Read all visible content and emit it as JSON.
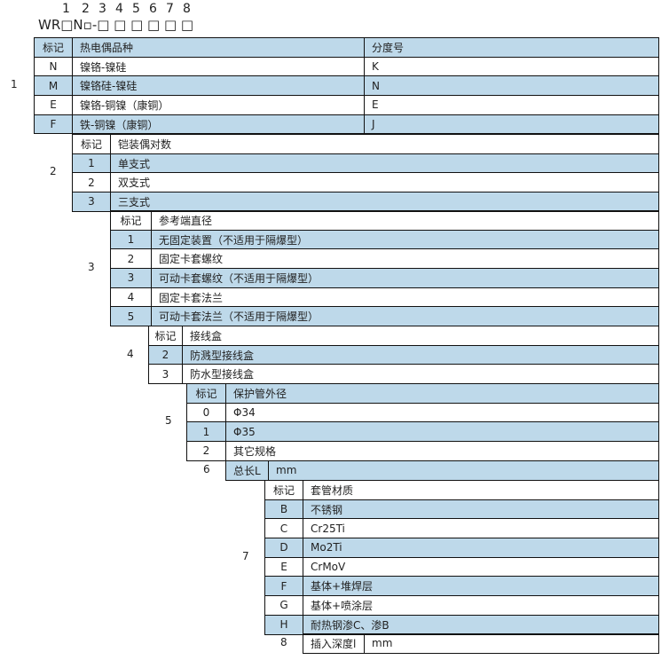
{
  "header": {
    "digits": [
      "1",
      "2",
      "3",
      "4",
      "5",
      "6",
      "7",
      "8"
    ],
    "pattern": "WR□N▫-□ □ □ □ □ □"
  },
  "sections": [
    {
      "label": "1",
      "head": [
        "标记",
        "热电偶品种",
        "分度号"
      ],
      "header_blue": true,
      "rows": [
        [
          "N",
          "镍铬-镍硅",
          "K"
        ],
        [
          "M",
          "镍铬硅-镍硅",
          "N"
        ],
        [
          "E",
          "镍铬-铜镍（康铜）",
          "E"
        ],
        [
          "F",
          "铁-铜镍（康铜）",
          "J"
        ]
      ]
    },
    {
      "label": "2",
      "head": [
        "标记",
        "铠装偶对数"
      ],
      "header_blue": false,
      "rows": [
        [
          "1",
          "单支式"
        ],
        [
          "2",
          "双支式"
        ],
        [
          "3",
          "三支式"
        ]
      ]
    },
    {
      "label": "3",
      "head": [
        "标记",
        "参考端直径"
      ],
      "header_blue": false,
      "rows": [
        [
          "1",
          "无固定装置（不适用于隔爆型）"
        ],
        [
          "2",
          "固定卡套螺纹"
        ],
        [
          "3",
          "可动卡套螺纹（不适用于隔爆型）"
        ],
        [
          "4",
          "固定卡套法兰"
        ],
        [
          "5",
          "可动卡套法兰（不适用于隔爆型）"
        ]
      ]
    },
    {
      "label": "4",
      "head": [
        "标记",
        "接线盒"
      ],
      "header_blue": false,
      "rows": [
        [
          "2",
          "防溅型接线盒"
        ],
        [
          "3",
          "防水型接线盒"
        ]
      ]
    },
    {
      "label": "5",
      "head": [
        "标记",
        "保护管外径"
      ],
      "header_blue": true,
      "rows": [
        [
          "0",
          "Φ34"
        ],
        [
          "1",
          "Φ35"
        ],
        [
          "2",
          "其它规格"
        ]
      ]
    },
    {
      "label": "6",
      "head": [
        "总长L",
        "mm"
      ],
      "header_blue": true,
      "rows": []
    },
    {
      "label": "7",
      "head": [
        "标记",
        "套管材质"
      ],
      "header_blue": false,
      "rows": [
        [
          "B",
          "不锈钢"
        ],
        [
          "C",
          "Cr25Ti"
        ],
        [
          "D",
          "Mo2Ti"
        ],
        [
          "E",
          "CrMoV"
        ],
        [
          "F",
          "基体+堆焊层"
        ],
        [
          "G",
          "基体+喷涂层"
        ],
        [
          "H",
          "耐热钢渗C、渗B"
        ]
      ]
    },
    {
      "label": "8",
      "head": [
        "插入深度l",
        "mm"
      ],
      "header_blue": false,
      "rows": []
    }
  ],
  "colors": {
    "row_blue": "#bed9ea",
    "border": "#111111"
  }
}
